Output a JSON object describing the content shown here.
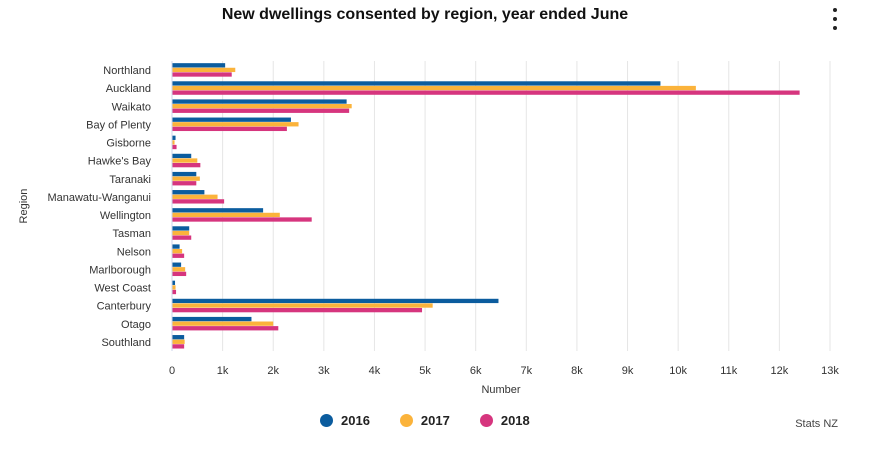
{
  "header": {
    "title": "New dwellings consented by region, year ended June"
  },
  "menu": {
    "icon": "more-vert-icon"
  },
  "credit": "Stats NZ",
  "chart_data": {
    "type": "bar",
    "orientation": "horizontal",
    "title": "New dwellings consented by region, year ended June",
    "xlabel": "Number",
    "ylabel": "Region",
    "xlim": [
      0,
      13000
    ],
    "x_ticks": [
      0,
      1000,
      2000,
      3000,
      4000,
      5000,
      6000,
      7000,
      8000,
      9000,
      10000,
      11000,
      12000,
      13000
    ],
    "x_tick_labels": [
      "0",
      "1k",
      "2k",
      "3k",
      "4k",
      "5k",
      "6k",
      "7k",
      "8k",
      "9k",
      "10k",
      "11k",
      "12k",
      "13k"
    ],
    "grid": true,
    "legend_position": "bottom",
    "categories": [
      "Northland",
      "Auckland",
      "Waikato",
      "Bay of Plenty",
      "Gisborne",
      "Hawke's Bay",
      "Taranaki",
      "Manawatu-Wanganui",
      "Wellington",
      "Tasman",
      "Nelson",
      "Marlborough",
      "West Coast",
      "Canterbury",
      "Otago",
      "Southland"
    ],
    "series": [
      {
        "name": "2016",
        "color": "#0b5c9e",
        "values": [
          1050,
          9650,
          3450,
          2350,
          70,
          380,
          480,
          640,
          1800,
          340,
          150,
          180,
          60,
          6450,
          1570,
          240
        ]
      },
      {
        "name": "2017",
        "color": "#fbb33b",
        "values": [
          1250,
          10350,
          3550,
          2500,
          50,
          500,
          550,
          900,
          2130,
          340,
          200,
          260,
          70,
          5150,
          2000,
          250
        ]
      },
      {
        "name": "2018",
        "color": "#d6357e",
        "values": [
          1180,
          12400,
          3500,
          2270,
          90,
          560,
          480,
          1030,
          2760,
          380,
          240,
          280,
          80,
          4940,
          2100,
          240
        ]
      }
    ]
  }
}
